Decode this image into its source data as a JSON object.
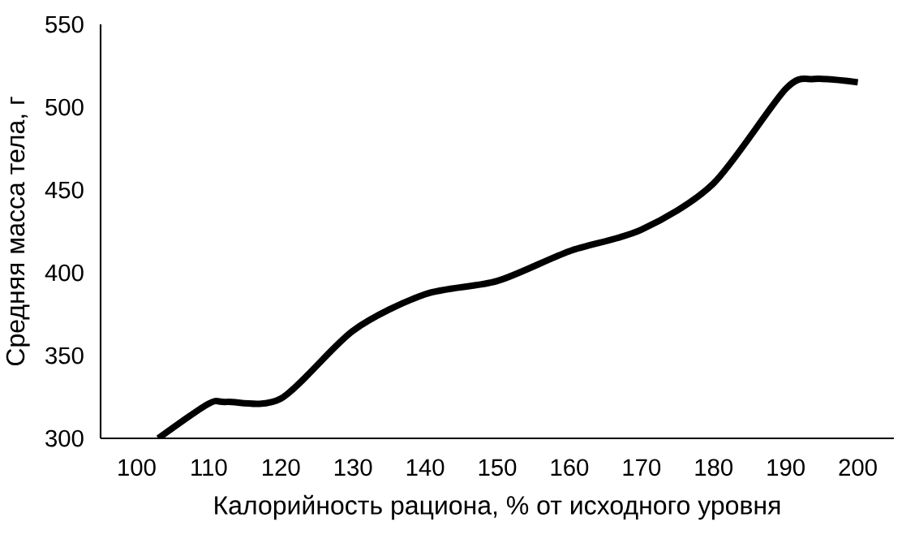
{
  "chart_data": {
    "type": "line",
    "xlabel": "Калорийность рациона, % от исходного уровня",
    "ylabel": "Средняя масса тела, г",
    "x": [
      103,
      110,
      112.5,
      120,
      130,
      140,
      150,
      160,
      170,
      180,
      190,
      194,
      200
    ],
    "series": [
      {
        "color": "#000000",
        "values": [
          300,
          321,
          322,
          324,
          365,
          387,
          395,
          413,
          426,
          454,
          511,
          517,
          515
        ]
      }
    ],
    "xlim": [
      95,
      205
    ],
    "xticks": [
      100,
      110,
      120,
      130,
      140,
      150,
      160,
      170,
      180,
      190,
      200
    ],
    "ylim": [
      300,
      550
    ],
    "yticks": [
      300,
      350,
      400,
      450,
      500,
      550
    ],
    "grid": false,
    "marker": "none",
    "line_style": "solid"
  }
}
